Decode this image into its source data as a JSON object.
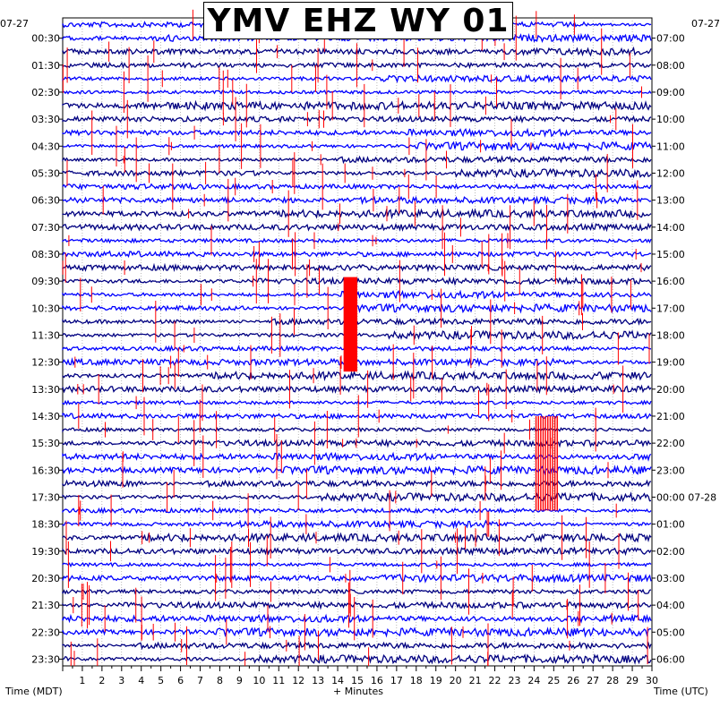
{
  "title": "YMV EHZ WY 01",
  "chart_data": {
    "type": "helicorder",
    "station": "YMV",
    "channel": "EHZ",
    "network": "WY",
    "location": "01",
    "xlabel": "+ Minutes",
    "x_ticks": [
      1,
      2,
      3,
      4,
      5,
      6,
      7,
      8,
      9,
      10,
      11,
      12,
      13,
      14,
      15,
      16,
      17,
      18,
      19,
      20,
      21,
      22,
      23,
      24,
      25,
      26,
      27,
      28,
      29,
      30
    ],
    "xlim": [
      0,
      30
    ],
    "left_axis_title": "Time (MDT)",
    "right_axis_title": "Time (UTC)",
    "left_date": "07-27",
    "right_date_top": "07-27",
    "right_date_change": "07-28",
    "left_times": [
      "00:30",
      "01:30",
      "02:30",
      "03:30",
      "04:30",
      "05:30",
      "06:30",
      "07:30",
      "08:30",
      "09:30",
      "10:30",
      "11:30",
      "12:30",
      "13:30",
      "14:30",
      "15:30",
      "16:30",
      "17:30",
      "18:30",
      "19:30",
      "20:30",
      "21:30",
      "22:30",
      "23:30"
    ],
    "right_times": [
      "07:00",
      "08:00",
      "09:00",
      "10:00",
      "11:00",
      "12:00",
      "13:00",
      "14:00",
      "15:00",
      "16:00",
      "17:00",
      "18:00",
      "19:00",
      "20:00",
      "21:00",
      "22:00",
      "23:00",
      "00:00",
      "01:00",
      "02:00",
      "03:00",
      "04:00",
      "05:00",
      "06:00"
    ],
    "trace_colors": [
      "#0000ff",
      "#000080"
    ],
    "spike_color": "#ff0000",
    "traces_per_hour": 2,
    "hours": 24,
    "large_event": {
      "hour_mdt": "10:00",
      "minute_start": 14.3,
      "minute_end": 15.0,
      "rows_spanned": 7
    },
    "secondary_event": {
      "hour_mdt": "15:30",
      "minute_start": 24.1,
      "minute_end": 25.2,
      "rows_spanned": 7
    }
  }
}
